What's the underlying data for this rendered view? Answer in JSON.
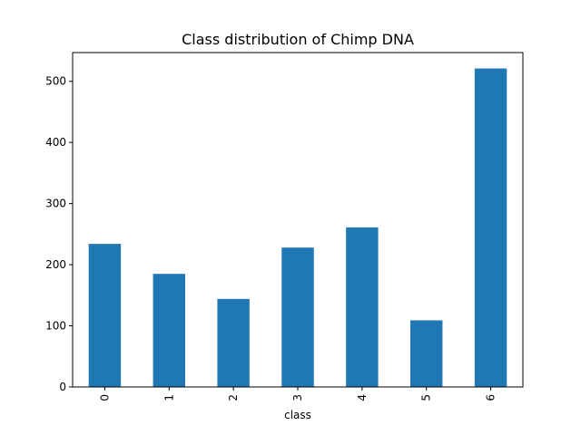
{
  "chart_data": {
    "type": "bar",
    "title": "Class distribution of Chimp DNA",
    "xlabel": "class",
    "ylabel": "",
    "categories": [
      "0",
      "1",
      "2",
      "3",
      "4",
      "5",
      "6"
    ],
    "values": [
      234,
      185,
      144,
      228,
      261,
      109,
      521
    ],
    "ylim": [
      0,
      547
    ],
    "yticks": [
      0,
      100,
      200,
      300,
      400,
      500
    ],
    "grid": false,
    "bar_color": "#1f77b4"
  }
}
